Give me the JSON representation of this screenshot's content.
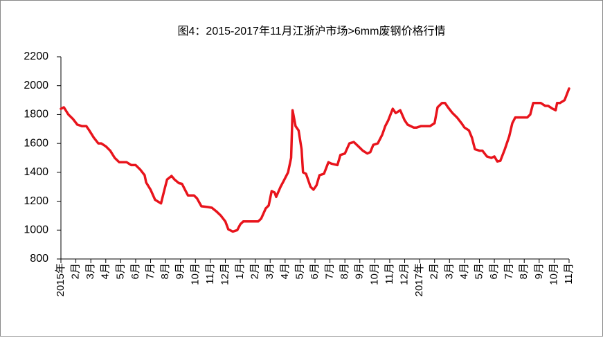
{
  "chart_data": {
    "type": "line",
    "title": "图4：2015-2017年11月江浙沪市场>6mm废钢价格行情",
    "x": [
      0,
      0.2,
      0.5,
      0.8,
      1.1,
      1.4,
      1.7,
      1.9,
      2.2,
      2.5,
      2.7,
      3.0,
      3.3,
      3.6,
      3.9,
      4.2,
      4.4,
      4.7,
      5.0,
      5.3,
      5.6,
      5.7,
      6.0,
      6.3,
      6.7,
      6.9,
      7.1,
      7.4,
      7.6,
      7.9,
      8.1,
      8.3,
      8.5,
      8.9,
      9.1,
      9.4,
      9.8,
      10.1,
      10.4,
      10.7,
      11.0,
      11.2,
      11.5,
      11.8,
      12.0,
      12.2,
      12.6,
      12.9,
      13.2,
      13.4,
      13.7,
      13.9,
      14.1,
      14.3,
      14.4,
      14.7,
      14.9,
      15.2,
      15.4,
      15.5,
      15.7,
      15.9,
      16.1,
      16.2,
      16.4,
      16.7,
      16.9,
      17.1,
      17.3,
      17.6,
      17.9,
      18.1,
      18.5,
      18.7,
      19.0,
      19.3,
      19.6,
      19.9,
      20.2,
      20.5,
      20.7,
      20.9,
      21.2,
      21.5,
      21.7,
      21.9,
      22.2,
      22.4,
      22.7,
      23.0,
      23.2,
      23.6,
      23.8,
      24.1,
      24.4,
      24.7,
      25.0,
      25.2,
      25.5,
      25.7,
      25.9,
      26.2,
      26.5,
      26.8,
      27.0,
      27.3,
      27.5,
      27.7,
      28.0,
      28.2,
      28.5,
      28.8,
      29.0,
      29.2,
      29.4,
      29.7,
      30.0,
      30.2,
      30.4,
      30.6,
      31.0,
      31.2,
      31.4,
      31.6,
      31.9,
      32.1,
      32.4,
      32.6,
      32.9,
      33.1,
      33.2,
      33.4,
      33.7,
      34.0
    ],
    "series": [
      {
        "color": "#e8141c",
        "values": [
          1840,
          1850,
          1800,
          1770,
          1730,
          1720,
          1720,
          1690,
          1640,
          1600,
          1600,
          1580,
          1550,
          1500,
          1470,
          1470,
          1470,
          1450,
          1450,
          1420,
          1380,
          1330,
          1280,
          1210,
          1185,
          1270,
          1350,
          1375,
          1350,
          1325,
          1320,
          1280,
          1240,
          1240,
          1220,
          1165,
          1160,
          1155,
          1130,
          1100,
          1060,
          1005,
          990,
          1000,
          1040,
          1060,
          1060,
          1060,
          1060,
          1080,
          1150,
          1170,
          1270,
          1260,
          1230,
          1300,
          1340,
          1400,
          1500,
          1830,
          1720,
          1690,
          1560,
          1400,
          1390,
          1300,
          1280,
          1310,
          1380,
          1390,
          1470,
          1460,
          1450,
          1520,
          1530,
          1600,
          1610,
          1580,
          1550,
          1530,
          1540,
          1590,
          1600,
          1660,
          1720,
          1760,
          1840,
          1810,
          1830,
          1760,
          1730,
          1710,
          1710,
          1720,
          1720,
          1720,
          1740,
          1850,
          1880,
          1880,
          1850,
          1810,
          1780,
          1740,
          1710,
          1690,
          1640,
          1560,
          1550,
          1550,
          1510,
          1500,
          1510,
          1475,
          1480,
          1560,
          1650,
          1740,
          1780,
          1780,
          1780,
          1780,
          1800,
          1880,
          1880,
          1880,
          1860,
          1860,
          1840,
          1830,
          1880,
          1880,
          1900,
          1980
        ]
      }
    ],
    "xlim": [
      0,
      34
    ],
    "xticks": [
      {
        "value": 0,
        "label": "2015年"
      },
      {
        "value": 1,
        "label": "2月"
      },
      {
        "value": 2,
        "label": "3月"
      },
      {
        "value": 3,
        "label": "4月"
      },
      {
        "value": 4,
        "label": "5月"
      },
      {
        "value": 5,
        "label": "6月"
      },
      {
        "value": 6,
        "label": "7月"
      },
      {
        "value": 7,
        "label": "8月"
      },
      {
        "value": 8,
        "label": "9月"
      },
      {
        "value": 9,
        "label": "10月"
      },
      {
        "value": 10,
        "label": "11月"
      },
      {
        "value": 11,
        "label": "12月"
      },
      {
        "value": 12,
        "label": "1月"
      },
      {
        "value": 13,
        "label": "2月"
      },
      {
        "value": 14,
        "label": "3月"
      },
      {
        "value": 15,
        "label": "4月"
      },
      {
        "value": 16,
        "label": "5月"
      },
      {
        "value": 17,
        "label": "6月"
      },
      {
        "value": 18,
        "label": "7月"
      },
      {
        "value": 19,
        "label": "8月"
      },
      {
        "value": 20,
        "label": "9月"
      },
      {
        "value": 21,
        "label": "10月"
      },
      {
        "value": 22,
        "label": "11月"
      },
      {
        "value": 23,
        "label": "12月"
      },
      {
        "value": 24,
        "label": "2017年"
      },
      {
        "value": 25,
        "label": "2月"
      },
      {
        "value": 26,
        "label": "3月"
      },
      {
        "value": 27,
        "label": "4月"
      },
      {
        "value": 28,
        "label": "5月"
      },
      {
        "value": 29,
        "label": "6月"
      },
      {
        "value": 30,
        "label": "7月"
      },
      {
        "value": 31,
        "label": "8月"
      },
      {
        "value": 32,
        "label": "9月"
      },
      {
        "value": 33,
        "label": "10月"
      },
      {
        "value": 34,
        "label": "11月"
      }
    ],
    "ylim": [
      800,
      2200
    ],
    "yticks": [
      800,
      1000,
      1200,
      1400,
      1600,
      1800,
      2000,
      2200
    ]
  }
}
